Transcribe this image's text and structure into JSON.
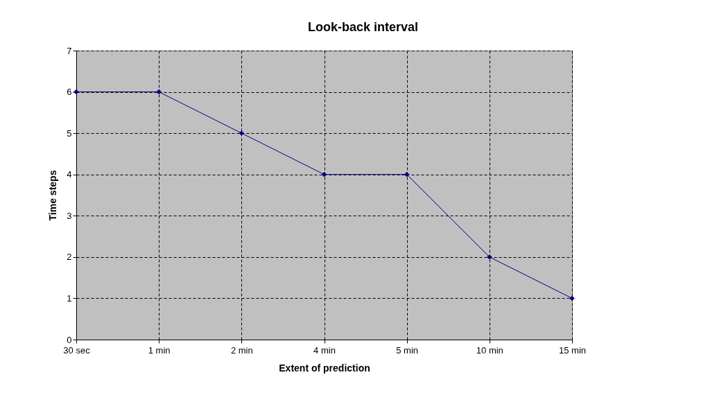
{
  "chart_data": {
    "type": "line",
    "title": "Look-back interval",
    "xlabel": "Extent of prediction",
    "ylabel": "Time steps",
    "categories": [
      "30 sec",
      "1 min",
      "2 min",
      "4 min",
      "5 min",
      "10 min",
      "15 min"
    ],
    "series": [
      {
        "color": "#000080",
        "values": [
          6,
          6,
          5,
          4,
          4,
          2,
          1
        ]
      }
    ],
    "ylim": [
      0,
      7
    ],
    "yticks": [
      0,
      1,
      2,
      3,
      4,
      5,
      6,
      7
    ],
    "grid": true,
    "marker": "diamond",
    "line_style": "solid"
  }
}
